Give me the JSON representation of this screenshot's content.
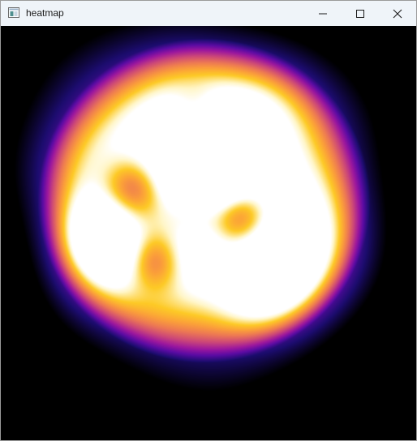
{
  "window": {
    "title": "heatmap",
    "app_icon": "app-window-icon",
    "controls": {
      "minimize": "minimize-icon",
      "maximize": "maximize-icon",
      "close": "close-icon"
    }
  },
  "heatmap": {
    "colormap": [
      "#000000",
      "#1c0c6e",
      "#5a0ba3",
      "#9c179e",
      "#cc4778",
      "#ed7953",
      "#fb9f3a",
      "#fdca26",
      "#fff6c8",
      "#ffffff"
    ],
    "background": "#000000"
  }
}
